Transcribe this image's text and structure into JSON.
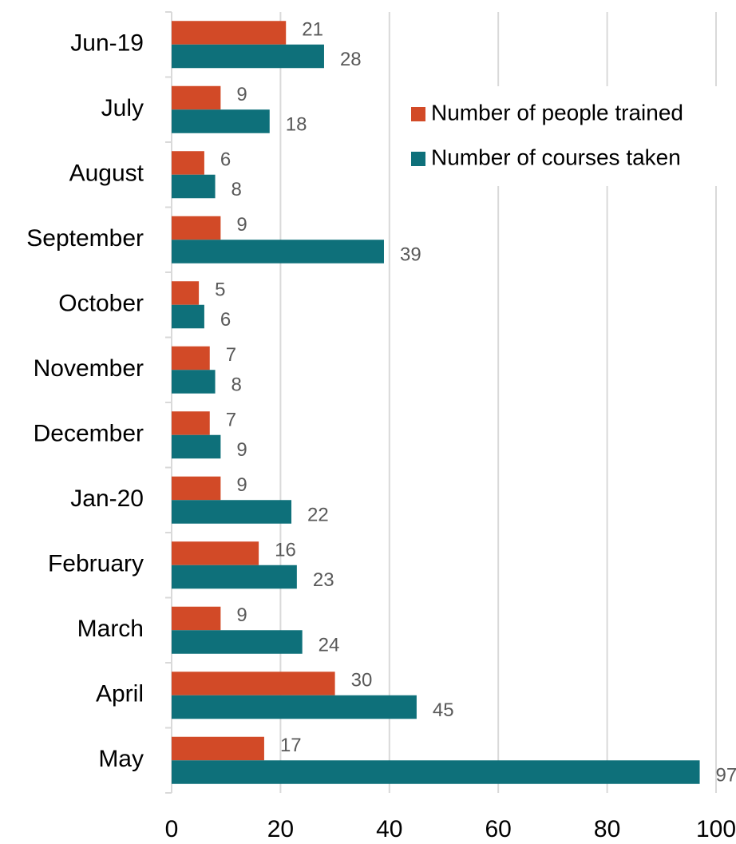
{
  "chart_data": {
    "type": "barh",
    "categories": [
      "Jun-19",
      "July",
      "August",
      "September",
      "October",
      "November",
      "December",
      "Jan-20",
      "February",
      "March",
      "April",
      "May"
    ],
    "series": [
      {
        "name": "Number of people trained",
        "color": "#d24a27",
        "values": [
          21,
          9,
          6,
          9,
          5,
          7,
          7,
          9,
          16,
          9,
          30,
          17
        ]
      },
      {
        "name": "Number of courses taken",
        "color": "#0e707a",
        "values": [
          28,
          18,
          8,
          39,
          6,
          8,
          9,
          22,
          23,
          24,
          45,
          97
        ]
      }
    ],
    "xlim": [
      0,
      100
    ],
    "xticks": [
      0,
      20,
      40,
      60,
      80,
      100
    ],
    "grid": true,
    "legend": "upper right"
  }
}
